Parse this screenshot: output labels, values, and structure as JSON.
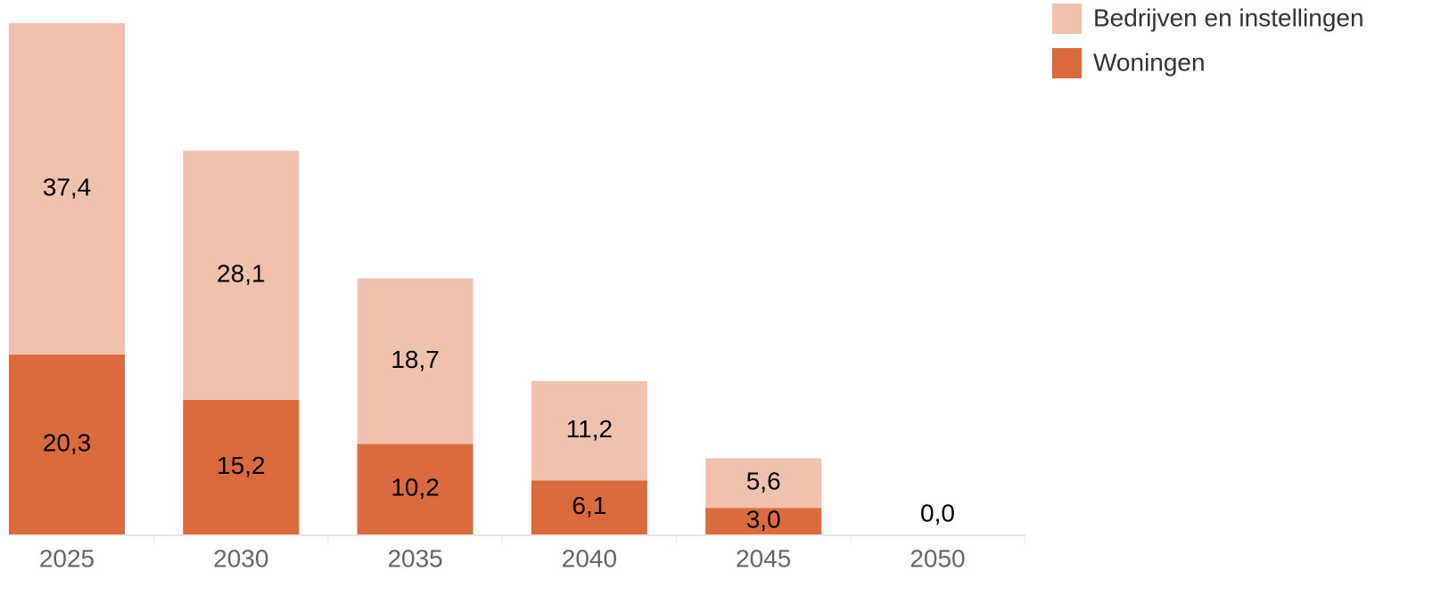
{
  "chart_data": {
    "type": "stacked-bar",
    "categories": [
      "2025",
      "2030",
      "2035",
      "2040",
      "2045",
      "2050"
    ],
    "series": [
      {
        "name": "Woningen",
        "color": "#db6b3c",
        "values": [
          20.3,
          15.2,
          10.2,
          6.1,
          3.0,
          0.0
        ],
        "value_labels": [
          "20,3",
          "15,2",
          "10,2",
          "6,1",
          "3,0",
          "0,0"
        ]
      },
      {
        "name": "Bedrijven en instellingen",
        "color": "#f0c2ae",
        "values": [
          37.4,
          28.1,
          18.7,
          11.2,
          5.6,
          null
        ],
        "value_labels": [
          "37,4",
          "28,1",
          "18,7",
          "11,2",
          "5,6",
          null
        ]
      }
    ],
    "legend": "top-right"
  }
}
